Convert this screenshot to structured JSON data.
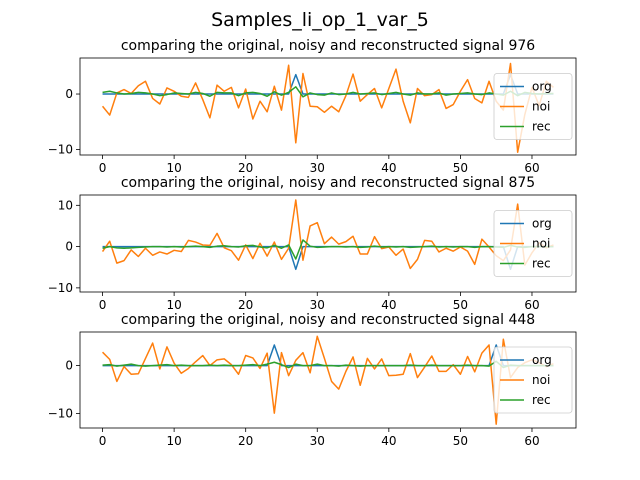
{
  "figure": {
    "title": "Samples_li_op_1_var_5"
  },
  "colors": {
    "org": "#1f77b4",
    "noi": "#ff7f0e",
    "rec": "#2ca02c"
  },
  "chart_data": [
    {
      "type": "line",
      "title": "comparing the original, noisy and reconstructed signal 976",
      "xlim": [
        -3.15,
        66.15
      ],
      "ylim": [
        -11,
        6.5
      ],
      "xticks": [
        0,
        10,
        20,
        30,
        40,
        50,
        60
      ],
      "yticks": [
        -10,
        0
      ],
      "legend": {
        "placement": "right",
        "entries": [
          "org",
          "noi",
          "rec"
        ]
      },
      "series": [
        {
          "name": "org",
          "values": [
            0,
            0,
            0,
            0,
            0,
            0,
            0,
            0,
            0,
            0,
            0,
            0,
            0,
            0,
            0,
            0,
            0,
            0,
            0,
            0,
            0,
            0,
            0,
            0,
            0,
            0,
            0,
            3.5,
            0,
            0,
            0,
            0,
            0,
            0,
            0,
            0,
            0,
            0,
            0,
            0,
            0,
            0,
            0,
            0,
            0,
            0,
            0,
            0,
            0,
            0,
            0,
            0,
            0,
            0,
            0,
            0,
            0,
            3.5,
            0,
            0,
            0,
            0,
            0,
            0
          ]
        },
        {
          "name": "noi",
          "values": [
            -2.2,
            -3.8,
            0.2,
            0.8,
            0.1,
            1.5,
            2.3,
            -0.8,
            -1.8,
            1.1,
            0.5,
            -0.4,
            -0.6,
            2,
            -1,
            -4.3,
            1.6,
            0.5,
            1.2,
            -2.5,
            0.9,
            -4.5,
            -1.3,
            -3.2,
            1.4,
            -2.9,
            5.2,
            -8.8,
            3.7,
            -2.2,
            -2.3,
            -3.3,
            -2.2,
            -3.2,
            -0.3,
            3.6,
            -1.3,
            -0.1,
            1,
            -2.5,
            1,
            4.5,
            -1.3,
            -5.2,
            1,
            -0.3,
            -0.1,
            0.8,
            -2.6,
            -1.9,
            0.5,
            2.6,
            -0.8,
            -1.6,
            2.3,
            -1.3,
            -2.9,
            5.5,
            -10.5,
            -3.7,
            1.2,
            -2.1,
            2.3,
            1.2
          ]
        },
        {
          "name": "rec",
          "values": [
            0.3,
            0.5,
            0.2,
            0,
            0.1,
            0.3,
            0.2,
            0,
            -0.3,
            -0.1,
            0.2,
            0.1,
            0,
            0.3,
            0.1,
            -0.4,
            0.3,
            0.2,
            0.2,
            -0.3,
            0.2,
            0.3,
            0.1,
            -0.4,
            0.4,
            -0.2,
            0.3,
            1.3,
            -0.5,
            0.2,
            -0.1,
            -0.2,
            0.2,
            -0.1,
            0,
            0.3,
            0,
            0.1,
            0.2,
            -0.1,
            0.1,
            0.3,
            0,
            -0.2,
            0.2,
            0,
            0,
            0.2,
            -0.2,
            0,
            0.1,
            0.2,
            0,
            -0.1,
            0.2,
            0,
            -0.2,
            0.5,
            -0.3,
            0.3,
            0.1,
            0,
            0.1,
            0.1
          ]
        }
      ]
    },
    {
      "type": "line",
      "title": "comparing the original, noisy and reconstructed signal 875",
      "xlim": [
        -3.15,
        66.15
      ],
      "ylim": [
        -11,
        12.5
      ],
      "xticks": [
        0,
        10,
        20,
        30,
        40,
        50,
        60
      ],
      "yticks": [
        -10,
        0,
        10
      ],
      "legend": {
        "placement": "right",
        "entries": [
          "org",
          "noi",
          "rec"
        ]
      },
      "series": [
        {
          "name": "org",
          "values": [
            0,
            0,
            0,
            0,
            0,
            0,
            0,
            0,
            0,
            0,
            0,
            0,
            0,
            0,
            0,
            0,
            0,
            0,
            0,
            0,
            0,
            0,
            0,
            0,
            0,
            0,
            0,
            -5.5,
            0,
            0,
            0,
            0,
            0,
            0,
            0,
            0,
            0,
            0,
            0,
            0,
            0,
            0,
            0,
            0,
            0,
            0,
            0,
            0,
            0,
            0,
            0,
            0,
            0,
            0,
            0,
            0,
            0,
            -5.5,
            0,
            0,
            0,
            0,
            0,
            0
          ]
        },
        {
          "name": "noi",
          "values": [
            -1.2,
            1.3,
            -4,
            -3.4,
            -0.8,
            -2.4,
            -0.4,
            -2.1,
            -1.3,
            -1.8,
            -0.9,
            -1.2,
            1.5,
            1.1,
            0.4,
            0.3,
            3.2,
            -0.3,
            -1,
            -3.3,
            0.4,
            -2.9,
            0.8,
            -2.3,
            1.1,
            -3.1,
            -0.4,
            11.3,
            -3.3,
            5,
            5.8,
            0.7,
            2.3,
            0.6,
            1.2,
            2.5,
            -1.8,
            -1.8,
            2.4,
            -0.5,
            -0.1,
            -2.1,
            -0.6,
            -5.3,
            -3.1,
            1.5,
            1.3,
            -1.3,
            -0.4,
            -1.1,
            -0.1,
            -1.1,
            -4.3,
            1.8,
            -0.1,
            -2.2,
            -3.4,
            -0.8,
            10.3,
            -4.5,
            -1.5,
            0.9,
            -0.3,
            0.4
          ]
        },
        {
          "name": "rec",
          "values": [
            -0.4,
            0,
            -0.3,
            -0.4,
            -0.3,
            -0.2,
            -0.1,
            0,
            0,
            -0.1,
            0,
            -0.1,
            0,
            0.1,
            0,
            -0.2,
            0.1,
            0.2,
            0,
            -0.1,
            0.2,
            0.3,
            -0.1,
            -0.3,
            0.3,
            -0.4,
            0.4,
            -3,
            1.6,
            0.1,
            -0.2,
            -0.1,
            0,
            0,
            -0.1,
            0,
            -0.2,
            -0.1,
            0.1,
            -0.1,
            0,
            -0.1,
            0,
            -0.2,
            -0.1,
            0,
            0.1,
            -0.1,
            0,
            -0.1,
            0,
            0,
            -0.2,
            0,
            0,
            -0.1,
            -0.2,
            0.3,
            -0.1,
            -0.2,
            0,
            0,
            0,
            0
          ]
        }
      ]
    },
    {
      "type": "line",
      "title": "comparing the original, noisy and reconstructed signal 448",
      "xlim": [
        -3.15,
        66.15
      ],
      "ylim": [
        -13,
        7
      ],
      "xticks": [
        0,
        10,
        20,
        30,
        40,
        50,
        60
      ],
      "yticks": [
        -10,
        0
      ],
      "legend": {
        "placement": "right",
        "entries": [
          "org",
          "noi",
          "rec"
        ]
      },
      "series": [
        {
          "name": "org",
          "values": [
            0,
            0,
            0,
            0,
            0,
            0,
            0,
            0,
            0,
            0,
            0,
            0,
            0,
            0,
            0,
            0,
            0,
            0,
            0,
            0,
            0,
            0,
            0,
            0,
            4.3,
            0,
            0,
            0,
            0,
            0,
            0,
            0,
            0,
            0,
            0,
            0,
            0,
            0,
            0,
            0,
            0,
            0,
            0,
            0,
            0,
            0,
            0,
            0,
            0,
            0,
            0,
            0,
            0,
            0,
            0,
            4.3,
            0,
            0,
            0,
            0,
            0,
            0,
            0,
            0
          ]
        },
        {
          "name": "noi",
          "values": [
            2.8,
            1.3,
            -3.3,
            -0.2,
            -1.8,
            -1.7,
            1.5,
            4.7,
            -0.7,
            3.9,
            0.5,
            -1.6,
            -0.6,
            0.8,
            2.1,
            0,
            1.2,
            1.4,
            0.2,
            -1.8,
            2.1,
            1.6,
            -0.6,
            2.6,
            -9.9,
            2.7,
            -2.1,
            1.1,
            2.7,
            -1.5,
            6.1,
            1.5,
            -3.3,
            -4.9,
            -1.2,
            1.8,
            -4.1,
            1.5,
            -0.7,
            1.4,
            -2.1,
            -2,
            -1.8,
            2.5,
            -2.5,
            -0.3,
            2,
            -1.2,
            -1.2,
            0.2,
            -1.8,
            1.9,
            -1.3,
            2.6,
            4.3,
            -12.2,
            5.5,
            -2.5,
            -0.4,
            0.6,
            1.2,
            0.6,
            -0.2,
            0.4
          ]
        },
        {
          "name": "rec",
          "values": [
            0.1,
            0.2,
            -0.1,
            0.1,
            0.3,
            0,
            -0.1,
            0,
            0.1,
            0.2,
            0,
            0.1,
            0,
            0,
            0,
            0.1,
            0,
            0.1,
            0,
            0,
            0.1,
            0.2,
            0,
            0.3,
            0.7,
            0.2,
            -0.4,
            0.3,
            0,
            0,
            0.3,
            0,
            0,
            -0.1,
            0.1,
            0,
            -0.1,
            0,
            0,
            0,
            0,
            0,
            0,
            0.1,
            0,
            0,
            0.1,
            0,
            0,
            0,
            0,
            0.1,
            0,
            0,
            -0.1,
            0.9,
            -0.4,
            0.1,
            0,
            0,
            0,
            0,
            0,
            0
          ]
        }
      ]
    }
  ]
}
